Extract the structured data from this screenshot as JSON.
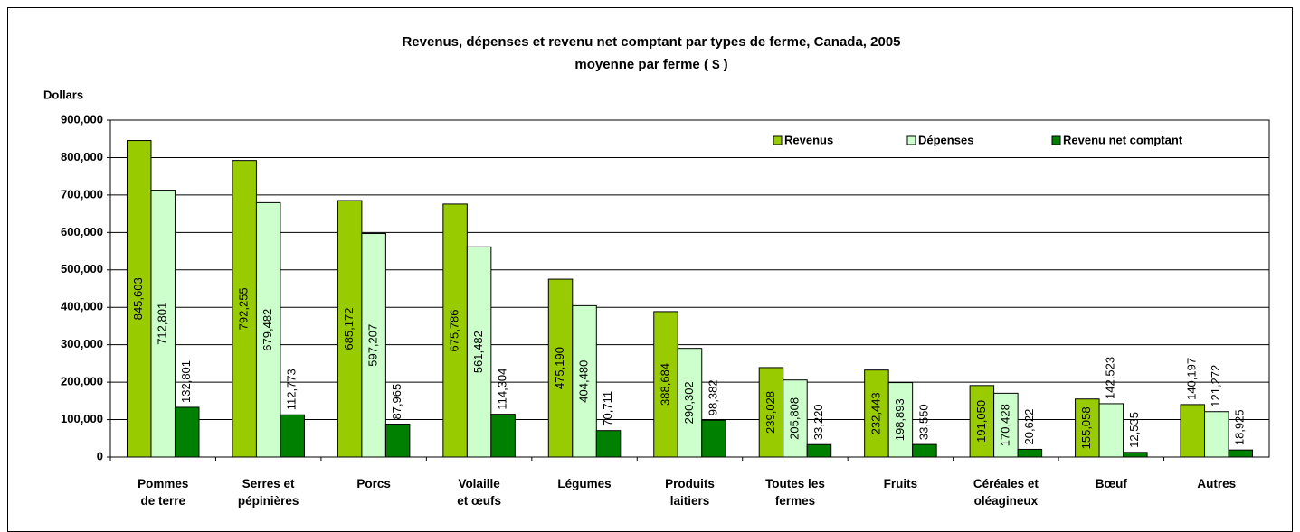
{
  "chart_data": {
    "type": "bar",
    "title": "Revenus, dépenses et revenu net comptant par types de ferme, Canada, 2005",
    "subtitle": "moyenne par ferme ( $ )",
    "y_label": "Dollars",
    "categories": [
      "Pommes\nde terre",
      "Serres et\npépinières",
      "Porcs",
      "Volaille\net œufs",
      "Légumes",
      "Produits\nlaitiers",
      "Toutes les\nfermes",
      "Fruits",
      "Céréales et\noléagineux",
      "Bœuf",
      "Autres"
    ],
    "series": [
      {
        "name": "Revenus",
        "color": "#99cc00",
        "values": [
          845603,
          792255,
          685172,
          675786,
          475190,
          388684,
          239028,
          232443,
          191050,
          155058,
          140197
        ],
        "value_labels": [
          "845,603",
          "792,255",
          "685,172",
          "675,786",
          "475,190",
          "388,684",
          "239,028",
          "232,443",
          "191,050",
          "155,058",
          "140,197"
        ]
      },
      {
        "name": "Dépenses",
        "color": "#ccffcc",
        "values": [
          712801,
          679482,
          597207,
          561482,
          404480,
          290302,
          205808,
          198893,
          170428,
          142523,
          121272
        ],
        "value_labels": [
          "712,801",
          "679,482",
          "597,207",
          "561,482",
          "404,480",
          "290,302",
          "205,808",
          "198,893",
          "170,428",
          "142,523",
          "121,272"
        ]
      },
      {
        "name": "Revenu net comptant",
        "color": "#008000",
        "values": [
          132801,
          112773,
          87965,
          114304,
          70711,
          98382,
          33220,
          33550,
          20622,
          12535,
          18925
        ],
        "value_labels": [
          "132,801",
          "112,773",
          "87,965",
          "114,304",
          "70,711",
          "98,382",
          "33,220",
          "33,550",
          "20,622",
          "12,535",
          "18,925"
        ]
      }
    ],
    "ylim": [
      0,
      900000
    ],
    "yticks": [
      0,
      {
        "value": 100000,
        "label": "100,000"
      },
      {
        "value": 200000,
        "label": "200,000"
      },
      {
        "value": 300000,
        "label": "300,000"
      },
      {
        "value": 400000,
        "label": "400,000"
      },
      {
        "value": 500000,
        "label": "500,000"
      },
      {
        "value": 600000,
        "label": "600,000"
      },
      {
        "value": 700000,
        "label": "700,000"
      },
      {
        "value": 800000,
        "label": "800,000"
      },
      {
        "value": 900000,
        "label": "900,000"
      }
    ],
    "grid": true,
    "legend": "top-right"
  }
}
